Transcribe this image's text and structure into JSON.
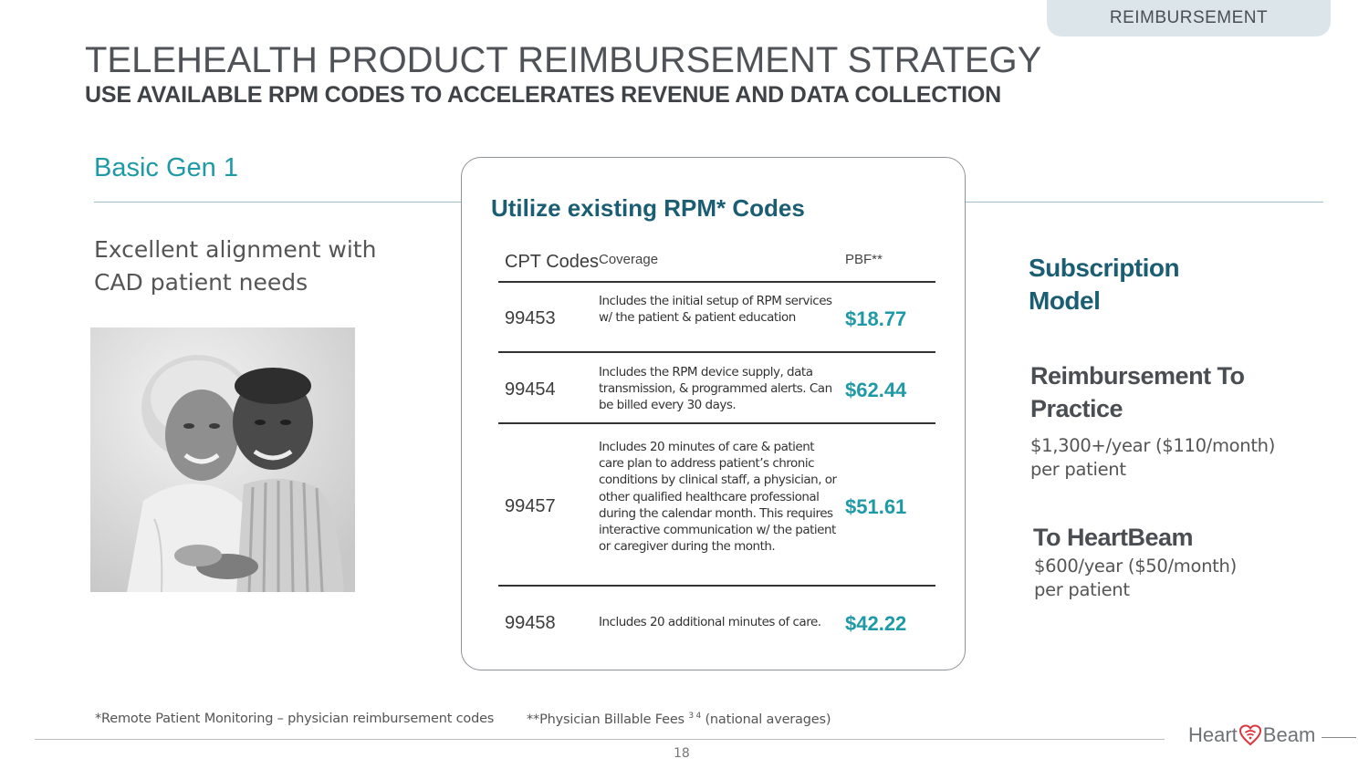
{
  "tag": "REIMBURSEMENT",
  "title": "TELEHEALTH PRODUCT REIMBURSEMENT STRATEGY",
  "subtitle": "USE AVAILABLE RPM CODES TO ACCELERATES REVENUE AND DATA COLLECTION",
  "left": {
    "heading": "Basic Gen 1",
    "text_lines": [
      "Excellent alignment with",
      "CAD patient needs"
    ]
  },
  "card": {
    "title": "Utilize existing RPM* Codes",
    "headers": {
      "code": "CPT Codes",
      "coverage": "Coverage",
      "fee": "PBF**"
    },
    "rows": [
      {
        "code": "99453",
        "coverage": "Includes the initial setup of RPM services w/ the patient & patient education",
        "fee": "$18.77"
      },
      {
        "code": "99454",
        "coverage": "Includes the RPM device supply, data transmission, & programmed alerts. Can be billed every 30 days.",
        "fee": "$62.44"
      },
      {
        "code": "99457",
        "coverage": "Includes 20 minutes of care & patient care plan to address patient’s chronic conditions by clinical staff, a physician, or other qualified healthcare professional during the calendar month. This requires interactive communication w/ the patient or caregiver during the month.",
        "fee": "$51.61"
      },
      {
        "code": "99458",
        "coverage": "Includes 20 additional minutes of care.",
        "fee": "$42.22"
      }
    ]
  },
  "right": {
    "model_lines": [
      "Subscription",
      "Model"
    ],
    "reimb_head_lines": [
      "Reimbursement To",
      "Practice"
    ],
    "reimb_value_lines": [
      "$1,300+/year ($110/month)",
      "per patient"
    ],
    "hb_head": "To HeartBeam",
    "hb_value_lines": [
      "$600/year ($50/month)",
      "per patient"
    ]
  },
  "footer": {
    "note1": "*Remote Patient Monitoring – physician reimbursement codes",
    "note2_pre": "**Physician Billable Fees",
    "note2_sup": "3 4",
    "note2_post": " (national averages)",
    "page_number": "18",
    "logo_left": "Heart",
    "logo_right": "Beam",
    "logo_heart_color": "#d9363e"
  },
  "colors": {
    "teal": "#1e9aa6",
    "navy_teal": "#1b5e73"
  }
}
